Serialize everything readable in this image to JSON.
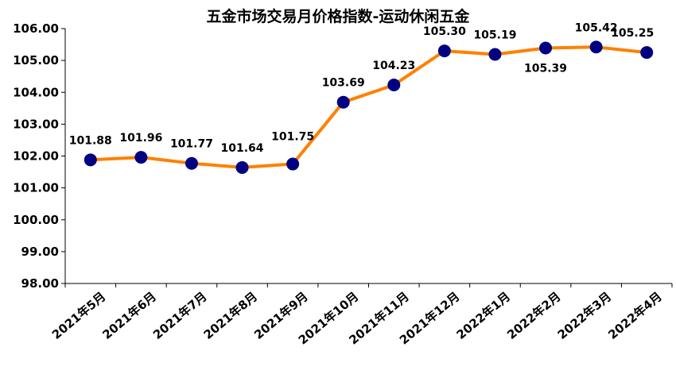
{
  "chart_data": {
    "type": "line",
    "title": "五金市场交易月价格指数-运动休闲五金",
    "xlabel": "",
    "ylabel": "",
    "categories": [
      "2021年5月",
      "2021年6月",
      "2021年7月",
      "2021年8月",
      "2021年9月",
      "2021年10月",
      "2021年11月",
      "2021年12月",
      "2022年1月",
      "2022年2月",
      "2022年3月",
      "2022年4月"
    ],
    "series": [
      {
        "values": [
          101.88,
          101.96,
          101.77,
          101.64,
          101.75,
          103.69,
          104.23,
          105.3,
          105.19,
          105.39,
          105.42,
          105.25
        ]
      }
    ],
    "data_labels": [
      "101.88",
      "101.96",
      "101.77",
      "101.64",
      "101.75",
      "103.69",
      "104.23",
      "105.30",
      "105.19",
      "105.39",
      "105.42",
      "105.25"
    ],
    "yticks": [
      "98.00",
      "99.00",
      "100.00",
      "101.00",
      "102.00",
      "103.00",
      "104.00",
      "105.00",
      "106.00"
    ],
    "ylim": [
      98,
      106
    ],
    "grid": false,
    "legend": "none",
    "colors": {
      "line": "#ff8000",
      "marker": "#000080",
      "axis": "#000000"
    }
  }
}
